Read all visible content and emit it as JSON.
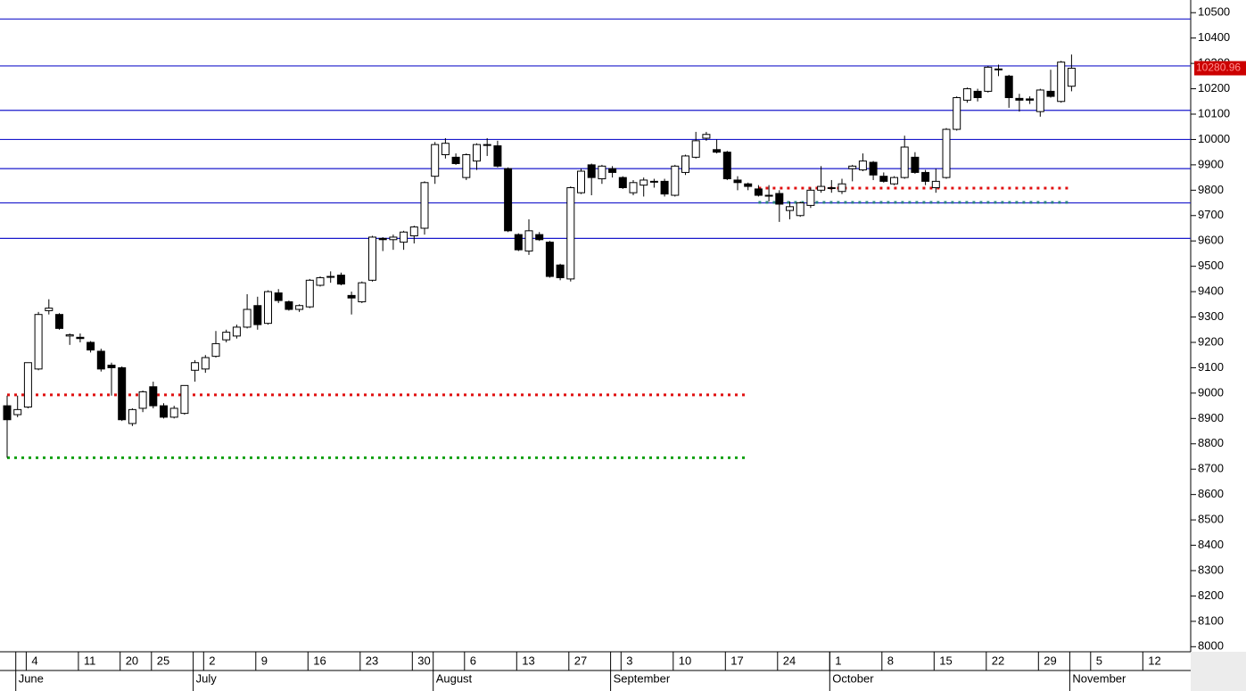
{
  "chart_data": {
    "type": "candlestick",
    "ylim": [
      7980,
      10550
    ],
    "yticks": [
      8000,
      8100,
      8200,
      8300,
      8400,
      8500,
      8600,
      8700,
      8800,
      8900,
      9000,
      9100,
      9200,
      9300,
      9400,
      9500,
      9600,
      9700,
      9800,
      9900,
      10000,
      10100,
      10200,
      10300,
      10400,
      10500
    ],
    "months": [
      {
        "days": [
          null
        ]
      },
      {
        "label": "June",
        "days": [
          null,
          "4",
          null,
          null,
          null,
          null,
          "11",
          null,
          null,
          null,
          "20",
          null,
          null,
          "25",
          null,
          null,
          null
        ]
      },
      {
        "label": "July",
        "days": [
          null,
          "2",
          null,
          null,
          null,
          null,
          "9",
          null,
          null,
          null,
          null,
          "16",
          null,
          null,
          null,
          null,
          "23",
          null,
          null,
          null,
          null,
          "30",
          null
        ]
      },
      {
        "label": "August",
        "days": [
          null,
          null,
          null,
          "6",
          null,
          null,
          null,
          null,
          "13",
          null,
          null,
          null,
          null,
          "27",
          null,
          null,
          null
        ]
      },
      {
        "label": "September",
        "days": [
          null,
          "3",
          null,
          null,
          null,
          null,
          "10",
          null,
          null,
          null,
          null,
          "17",
          null,
          null,
          null,
          null,
          "24",
          null,
          null,
          null,
          null
        ]
      },
      {
        "label": "October",
        "days": [
          "1",
          null,
          null,
          null,
          null,
          "8",
          null,
          null,
          null,
          null,
          "15",
          null,
          null,
          null,
          null,
          "22",
          null,
          null,
          null,
          null,
          "29",
          null,
          null
        ]
      },
      {
        "label": "November",
        "days": [
          null,
          null,
          "5",
          null,
          null,
          null,
          null,
          "12",
          null,
          null,
          null,
          null
        ]
      }
    ],
    "open": [
      8950,
      8915,
      8945,
      9095,
      9325,
      9310,
      9225,
      9220,
      9200,
      9165,
      9110,
      9100,
      8880,
      8940,
      9025,
      8950,
      8905,
      8920,
      9090,
      9095,
      9145,
      9210,
      9225,
      9260,
      9345,
      9275,
      9395,
      9360,
      9330,
      9340,
      9425,
      9460,
      9465,
      9385,
      9360,
      9445,
      9610,
      9605,
      9595,
      9620,
      9650,
      9855,
      9940,
      9930,
      9850,
      9915,
      9980,
      9975,
      9885,
      9625,
      9560,
      9625,
      9595,
      9505,
      9450,
      9790,
      9900,
      9845,
      9885,
      9850,
      9790,
      9820,
      9835,
      9835,
      9780,
      9870,
      9930,
      10005,
      9960,
      9950,
      9840,
      9825,
      9805,
      9780,
      9787,
      9720,
      9700,
      9740,
      9800,
      9810,
      9795,
      9885,
      9880,
      9910,
      9855,
      9825,
      9850,
      9930,
      9870,
      9810,
      9850,
      10040,
      10155,
      10190,
      10190,
      10278,
      10250,
      10162,
      10160,
      10110,
      10190,
      10150,
      10210,
      null,
      null,
      null,
      null,
      null,
      null,
      null,
      null,
      null,
      null,
      null
    ],
    "high": [
      8990,
      8990,
      9120,
      9320,
      9370,
      9315,
      9235,
      9235,
      9205,
      9175,
      9120,
      9105,
      8940,
      9010,
      9045,
      8960,
      8950,
      9030,
      9130,
      9150,
      9245,
      9250,
      9270,
      9390,
      9380,
      9405,
      9410,
      9365,
      9350,
      9450,
      9460,
      9480,
      9475,
      9400,
      9440,
      9620,
      9615,
      9625,
      9640,
      9660,
      9835,
      9990,
      10005,
      9945,
      9945,
      9985,
      10005,
      9995,
      9890,
      9630,
      9685,
      9635,
      9600,
      9510,
      9815,
      9885,
      9905,
      9900,
      9895,
      9855,
      9840,
      9850,
      9845,
      9845,
      9900,
      9940,
      10030,
      10030,
      10000,
      9955,
      9855,
      9830,
      9820,
      9820,
      9800,
      9755,
      9755,
      9810,
      9895,
      9840,
      9845,
      9900,
      9945,
      9915,
      9870,
      9855,
      10015,
      9950,
      9880,
      9885,
      10045,
      10170,
      10205,
      10200,
      10290,
      10295,
      10255,
      10180,
      10170,
      10200,
      10275,
      10310,
      10335,
      null,
      null,
      null,
      null,
      null,
      null,
      null,
      null,
      null,
      null,
      null
    ],
    "low": [
      8745,
      8905,
      8940,
      9090,
      9310,
      9250,
      9190,
      9200,
      9160,
      9085,
      8990,
      8890,
      8870,
      8925,
      8940,
      8900,
      8900,
      8915,
      9045,
      9080,
      9140,
      9200,
      9215,
      9255,
      9250,
      9270,
      9355,
      9325,
      9320,
      9335,
      9420,
      9435,
      9425,
      9310,
      9355,
      9440,
      9560,
      9565,
      9565,
      9590,
      9625,
      9825,
      9925,
      9900,
      9840,
      9880,
      9935,
      9890,
      9635,
      9560,
      9545,
      9600,
      9455,
      9445,
      9440,
      9785,
      9780,
      9825,
      9850,
      9805,
      9780,
      9775,
      9810,
      9775,
      9775,
      9860,
      9925,
      9995,
      9945,
      9840,
      9800,
      9800,
      9775,
      9755,
      9675,
      9685,
      9695,
      9730,
      9790,
      9790,
      9785,
      9835,
      9875,
      9840,
      9830,
      9820,
      9845,
      9865,
      9820,
      9790,
      9845,
      10035,
      10145,
      10150,
      10185,
      10250,
      10125,
      10110,
      10140,
      10090,
      10165,
      10145,
      10190,
      null,
      null,
      null,
      null,
      null,
      null,
      null,
      null,
      null,
      null,
      null
    ],
    "close": [
      8895,
      8935,
      9120,
      9310,
      9335,
      9255,
      9230,
      9215,
      9170,
      9095,
      9100,
      8895,
      8935,
      9005,
      8950,
      8905,
      8940,
      9030,
      9120,
      9140,
      9195,
      9240,
      9260,
      9330,
      9270,
      9400,
      9365,
      9330,
      9345,
      9445,
      9455,
      9460,
      9430,
      9375,
      9435,
      9615,
      9605,
      9615,
      9635,
      9655,
      9830,
      9980,
      9985,
      9905,
      9940,
      9980,
      9978,
      9895,
      9640,
      9565,
      9640,
      9605,
      9460,
      9455,
      9810,
      9875,
      9850,
      9895,
      9870,
      9810,
      9830,
      9840,
      9832,
      9785,
      9895,
      9935,
      9995,
      10020,
      9950,
      9845,
      9830,
      9815,
      9780,
      9778,
      9745,
      9735,
      9750,
      9800,
      9815,
      9808,
      9825,
      9895,
      9915,
      9860,
      9835,
      9850,
      9970,
      9870,
      9835,
      9835,
      10040,
      10165,
      10200,
      10165,
      10285,
      10275,
      10165,
      10155,
      10155,
      10195,
      10170,
      10305,
      10280.96,
      null,
      null,
      null,
      null,
      null,
      null,
      null,
      null,
      null,
      null,
      null
    ],
    "hlines": [
      10475,
      10290,
      10115,
      10000,
      9885,
      9750,
      9610
    ],
    "hline_color": "#1a1acc",
    "levels": [
      {
        "value": 8993,
        "color": "#e01010",
        "start": 0,
        "end": 71
      },
      {
        "value": 8745,
        "color": "#10a010",
        "start": 0,
        "end": 71
      },
      {
        "value": 9808,
        "color": "#e01010",
        "start": 72,
        "end": 102
      },
      {
        "value": 9752,
        "color": "#2a8080",
        "start": 72,
        "end": 102
      }
    ],
    "last_price": {
      "value": 10280.96,
      "label": "10280.96"
    }
  }
}
